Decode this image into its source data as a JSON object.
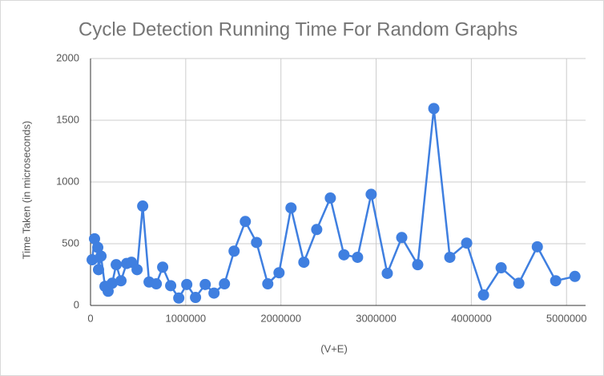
{
  "chart_data": {
    "type": "line",
    "title": "Cycle Detection Running Time For Random Graphs",
    "x_label": "(V+E)",
    "y_label": "Time Taken (in microseconds)",
    "x": [
      17000,
      42000,
      76000,
      84000,
      110000,
      152000,
      185000,
      227000,
      270000,
      320000,
      379000,
      430000,
      489000,
      548000,
      615000,
      691000,
      758000,
      842000,
      927000,
      1011000,
      1103000,
      1205000,
      1297000,
      1407000,
      1508000,
      1626000,
      1744000,
      1862000,
      1980000,
      2106000,
      2241000,
      2376000,
      2519000,
      2662000,
      2805000,
      2948000,
      3117000,
      3269000,
      3437000,
      3606000,
      3774000,
      3951000,
      4128000,
      4313000,
      4499000,
      4693000,
      4886000,
      5088000
    ],
    "values": [
      370,
      540,
      470,
      290,
      400,
      155,
      115,
      180,
      330,
      200,
      340,
      350,
      290,
      805,
      190,
      175,
      310,
      160,
      60,
      170,
      65,
      170,
      100,
      175,
      440,
      680,
      510,
      175,
      265,
      790,
      350,
      615,
      870,
      410,
      390,
      900,
      260,
      550,
      330,
      1595,
      390,
      505,
      85,
      305,
      180,
      475,
      200,
      235
    ],
    "color": "#3f7fe0",
    "xlim": [
      0,
      5200000
    ],
    "xticks": [
      0,
      1000000,
      2000000,
      3000000,
      4000000,
      5000000
    ],
    "ylim": [
      0,
      2000
    ],
    "yticks": [
      0,
      500,
      1000,
      1500,
      2000
    ],
    "grid": true
  }
}
